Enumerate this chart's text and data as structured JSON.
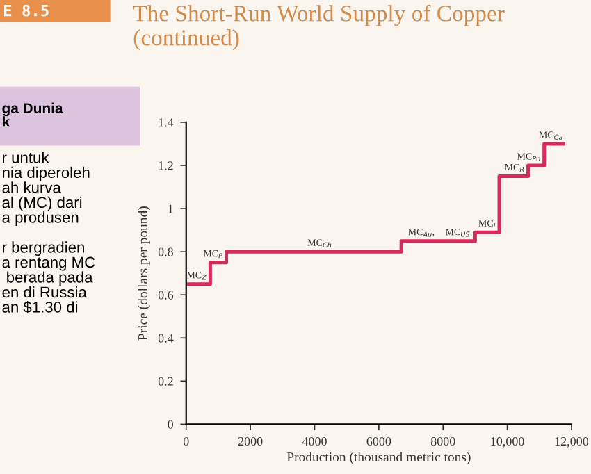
{
  "chart_data": {
    "type": "step",
    "title": "The Short-Run World Supply of Copper (continued)",
    "xlabel": "Production (thousand metric tons)",
    "ylabel": "Price (dollars per pound)",
    "x": [
      0,
      750,
      1250,
      6700,
      9000,
      9750,
      10650,
      11150,
      11750
    ],
    "values": [
      0.65,
      0.75,
      0.8,
      0.85,
      0.89,
      1.15,
      1.2,
      1.3,
      1.3
    ],
    "color": "#d42a5c",
    "xlim": [
      0,
      12000
    ],
    "ylim": [
      0,
      1.4
    ],
    "xticks": [
      0,
      2000,
      4000,
      6000,
      8000,
      {
        "value": 10000,
        "label": "10,000"
      },
      {
        "value": 12000,
        "label": "12,000"
      }
    ],
    "yticks": [
      0,
      0.2,
      0.4,
      0.6,
      0.8,
      1,
      1.2,
      1.4
    ],
    "grid": false,
    "line_style": "solid",
    "marker": "none",
    "annotations": [
      {
        "text": "MC$_{Z}$",
        "x": 700,
        "y": 0.65
      },
      {
        "text": "MC$_{P}$",
        "x": 1200,
        "y": 0.75
      },
      {
        "text": "MC$_{Ch}$",
        "x": 4600,
        "y": 0.8
      },
      {
        "text": "MC$_{Au}$,",
        "x": 7800,
        "y": 0.85
      },
      {
        "text": "MC$_{US}$",
        "x": 8900,
        "y": 0.85
      },
      {
        "text": "MC$_{I}$",
        "x": 9700,
        "y": 0.89
      },
      {
        "text": "MC$_{R}$",
        "x": 10600,
        "y": 1.15
      },
      {
        "text": "MC$_{Po}$",
        "x": 11100,
        "y": 1.2
      },
      {
        "text": "MC$_{Ca}$",
        "x": 11800,
        "y": 1.3
      },
      "E 8.5",
      "ga Dunia\nk",
      "r untuk\nnia diperoleh\nah kurva\nal (MC) dari\na produsen\n\nr bergradien\na rentang MC\n berada pada\nen di Russia\nan $1.30 di"
    ]
  }
}
